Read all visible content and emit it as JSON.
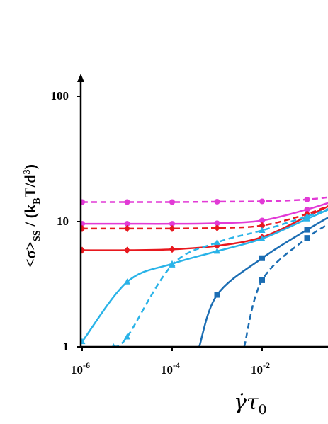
{
  "chart_data": {
    "type": "line",
    "xscale": "log",
    "yscale": "log",
    "xlim": [
      1e-06,
      0.5
    ],
    "ylim": [
      1,
      100
    ],
    "x_ticks": [
      "10",
      "10",
      "10"
    ],
    "x_tick_exponents": [
      "-6",
      "-4",
      "-2"
    ],
    "y_ticks": [
      "1",
      "10",
      "100"
    ],
    "ylabel": {
      "open": "<σ>",
      "sub": "SS",
      "mid": " / (k",
      "sub2": "B",
      "mid2": "T/d",
      "sup": "3",
      "close": ")"
    },
    "xlabel": {
      "main": "γ̇τ",
      "sub": "0"
    },
    "grid": false,
    "legend": "none",
    "series": [
      {
        "color": "#e23ad6",
        "dash": true,
        "marker": "circle",
        "x": [
          1e-06,
          1e-05,
          0.0001,
          0.001,
          0.01,
          0.1,
          0.5
        ],
        "y": [
          14.3,
          14.3,
          14.3,
          14.4,
          14.5,
          15.0,
          16.0
        ]
      },
      {
        "color": "#e23ad6",
        "dash": false,
        "marker": "circle",
        "x": [
          1e-06,
          1e-05,
          0.0001,
          0.001,
          0.01,
          0.1,
          0.5
        ],
        "y": [
          9.6,
          9.6,
          9.6,
          9.7,
          10.2,
          12.5,
          15.0
        ]
      },
      {
        "color": "#e8181e",
        "dash": true,
        "marker": "diamond",
        "x": [
          1e-06,
          1e-05,
          0.0001,
          0.001,
          0.01,
          0.1,
          0.5
        ],
        "y": [
          8.8,
          8.8,
          8.8,
          8.9,
          9.3,
          11.5,
          14.5
        ]
      },
      {
        "color": "#e8181e",
        "dash": false,
        "marker": "diamond",
        "x": [
          1e-06,
          1e-05,
          0.0001,
          0.001,
          0.01,
          0.1,
          0.5
        ],
        "y": [
          5.9,
          5.9,
          6.0,
          6.4,
          7.5,
          11.0,
          14.5
        ]
      },
      {
        "color": "#29b3e8",
        "dash": false,
        "marker": "triangle",
        "x": [
          1e-06,
          1e-05,
          0.0001,
          0.001,
          0.01,
          0.1,
          0.5
        ],
        "y": [
          1.1,
          3.3,
          4.6,
          5.8,
          7.3,
          10.5,
          13.5
        ]
      },
      {
        "color": "#29b3e8",
        "dash": true,
        "marker": "triangle",
        "x": [
          5e-06,
          1e-05,
          0.0001,
          0.001,
          0.01,
          0.1,
          0.5
        ],
        "y": [
          1.0,
          1.2,
          4.5,
          6.8,
          8.5,
          11.0,
          13.5
        ]
      },
      {
        "color": "#1b6db3",
        "dash": false,
        "marker": "square",
        "x": [
          0.0004,
          0.001,
          0.01,
          0.1,
          0.5
        ],
        "y": [
          1.0,
          2.6,
          5.1,
          8.6,
          12.0
        ]
      },
      {
        "color": "#1b6db3",
        "dash": true,
        "marker": "square",
        "x": [
          0.004,
          0.01,
          0.1,
          0.5
        ],
        "y": [
          1.0,
          3.4,
          7.4,
          10.5
        ]
      }
    ]
  }
}
